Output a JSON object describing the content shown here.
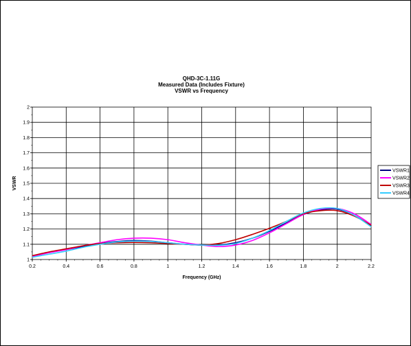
{
  "chart_data": {
    "type": "line",
    "title_lines": [
      "QHD-3C-1.11G",
      "Measured Data (Includes Fixture)",
      "VSWR vs Frequency"
    ],
    "xlabel": "Frequency (GHz)",
    "ylabel": "VSWR",
    "xlim": [
      0.2,
      2.2
    ],
    "ylim": [
      1,
      2
    ],
    "x_ticks": [
      "0.2",
      "0.4",
      "0.6",
      "0.8",
      "1",
      "1.2",
      "1.4",
      "1.6",
      "1.8",
      "2",
      "2.2"
    ],
    "y_ticks": [
      "1",
      "1.1",
      "1.2",
      "1.3",
      "1.4",
      "1.5",
      "1.6",
      "1.7",
      "1.8",
      "1.9",
      "2"
    ],
    "grid": true,
    "legend_position": "right",
    "x": [
      0.2,
      0.3,
      0.4,
      0.5,
      0.6,
      0.7,
      0.8,
      0.9,
      1.0,
      1.1,
      1.2,
      1.3,
      1.4,
      1.5,
      1.6,
      1.7,
      1.8,
      1.9,
      2.0,
      2.1,
      2.2
    ],
    "series": [
      {
        "name": "VSWR1",
        "color": "#000080",
        "values": [
          1.02,
          1.045,
          1.065,
          1.085,
          1.105,
          1.118,
          1.125,
          1.12,
          1.11,
          1.1,
          1.095,
          1.095,
          1.11,
          1.14,
          1.185,
          1.24,
          1.295,
          1.325,
          1.33,
          1.29,
          1.22
        ]
      },
      {
        "name": "VSWR2",
        "color": "#ff00ff",
        "values": [
          1.02,
          1.045,
          1.065,
          1.09,
          1.11,
          1.13,
          1.14,
          1.14,
          1.13,
          1.11,
          1.095,
          1.085,
          1.095,
          1.125,
          1.175,
          1.235,
          1.295,
          1.33,
          1.335,
          1.3,
          1.23
        ]
      },
      {
        "name": "VSWR3",
        "color": "#c00000",
        "values": [
          1.025,
          1.05,
          1.07,
          1.09,
          1.105,
          1.11,
          1.112,
          1.11,
          1.105,
          1.1,
          1.095,
          1.105,
          1.13,
          1.165,
          1.205,
          1.25,
          1.3,
          1.32,
          1.32,
          1.285,
          1.225
        ]
      },
      {
        "name": "VSWR4",
        "color": "#33ccff",
        "values": [
          1.015,
          1.035,
          1.055,
          1.08,
          1.1,
          1.115,
          1.12,
          1.118,
          1.11,
          1.1,
          1.095,
          1.093,
          1.105,
          1.14,
          1.19,
          1.25,
          1.305,
          1.335,
          1.335,
          1.29,
          1.215
        ]
      }
    ]
  }
}
